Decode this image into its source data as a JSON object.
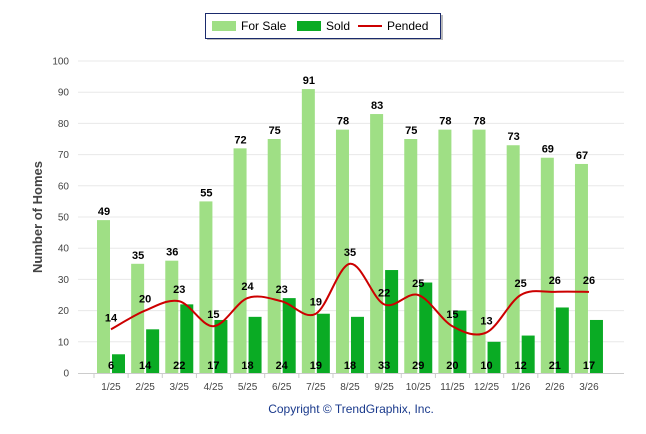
{
  "chart_data": {
    "type": "bar",
    "title": "",
    "ylabel": "Number of Homes",
    "xlabel": "",
    "ylim": [
      0,
      100
    ],
    "yticks": [
      0,
      10,
      20,
      30,
      40,
      50,
      60,
      70,
      80,
      90,
      100
    ],
    "grid": true,
    "legend_placement": "top-center",
    "categories": [
      "1/25",
      "2/25",
      "3/25",
      "4/25",
      "5/25",
      "6/25",
      "7/25",
      "8/25",
      "9/25",
      "10/25",
      "11/25",
      "12/25",
      "1/26",
      "2/26",
      "3/26"
    ],
    "series": [
      {
        "name": "For Sale",
        "type": "bar",
        "color": "#9fdf85",
        "values": [
          49,
          35,
          36,
          55,
          72,
          75,
          91,
          78,
          83,
          75,
          78,
          78,
          73,
          69,
          67
        ]
      },
      {
        "name": "Sold",
        "type": "bar",
        "color": "#0aab24",
        "values": [
          6,
          14,
          22,
          17,
          18,
          24,
          19,
          18,
          33,
          29,
          20,
          10,
          12,
          21,
          17
        ]
      },
      {
        "name": "Pended",
        "type": "line",
        "color": "#cc0000",
        "values": [
          14,
          20,
          23,
          15,
          24,
          23,
          19,
          35,
          22,
          25,
          15,
          13,
          25,
          26,
          26
        ]
      }
    ],
    "footer": "Copyright © TrendGraphix, Inc."
  }
}
